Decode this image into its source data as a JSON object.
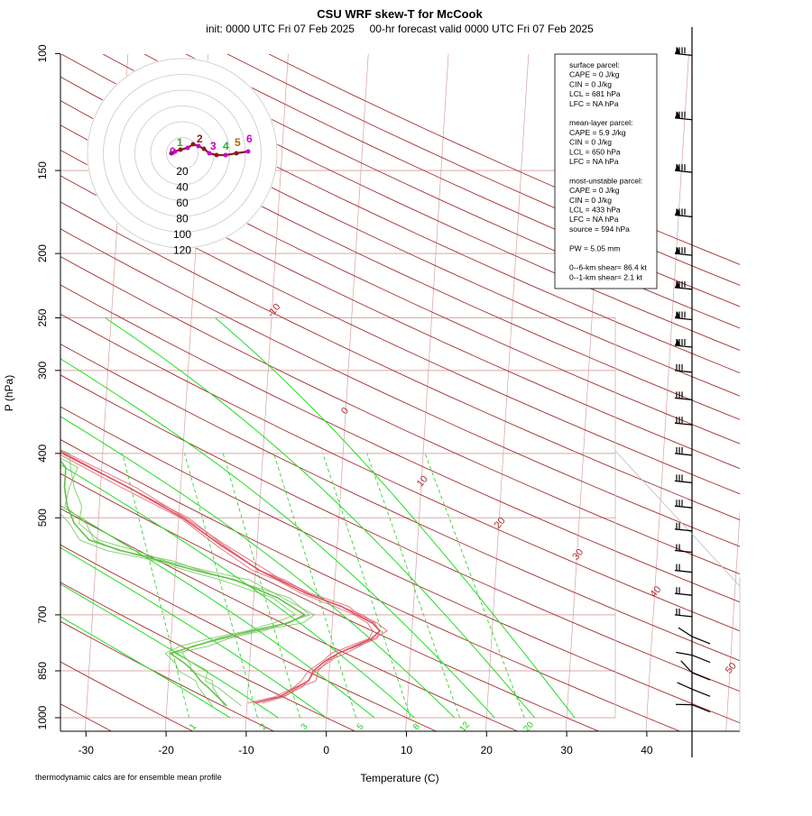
{
  "header": {
    "title": "CSU WRF skew-T for McCook",
    "subtitle": "init: 0000 UTC Fri 07 Feb 2025     00-hr forecast valid 0000 UTC Fri 07 Feb 2025"
  },
  "footer": {
    "note": "thermodynamic calcs are for ensemble mean profile"
  },
  "colors": {
    "temperature": "#dd4f5f",
    "dewpoint": "#66c14b",
    "isotherm": "#d9a0a0",
    "dry_adiabat": "#a42d2d",
    "moist_adiabat": "#22dd22",
    "mixing_ratio": "#22cc22",
    "isobar": "#d8a8a8"
  },
  "stats_box": {
    "lines": [
      "surface parcel:",
      "CAPE = 0 J/kg",
      "CIN = 0 J/kg",
      "LCL = 681 hPa",
      "LFC = NA hPa",
      "",
      "mean-layer parcel:",
      "CAPE = 5.9 J/kg",
      "CIN = 0 J/kg",
      "LCL = 650 hPa",
      "LFC = NA hPa",
      "",
      "most-unstable parcel:",
      "CAPE = 0 J/kg",
      "CIN = 0 J/kg",
      "LCL = 433 hPa",
      "LFC = NA hPa",
      "source = 594 hPa",
      "",
      "PW =  5.05 mm",
      "",
      "0--6-km shear= 86.4 kt",
      "0--1-km shear= 2.1 kt"
    ]
  },
  "hodograph": {
    "ring_labels": [
      "20",
      "40",
      "60",
      "80",
      "100",
      "120"
    ],
    "height_labels": [
      "0",
      "1",
      "2",
      "3",
      "4",
      "5",
      "6"
    ]
  },
  "chart_data": {
    "type": "line",
    "title": "CSU WRF skew-T for McCook",
    "xlabel": "Temperature (C)",
    "ylabel": "P (hPa)",
    "x_ticks": [
      "-30",
      "-20",
      "-10",
      "0",
      "10",
      "20",
      "30",
      "40"
    ],
    "x_tick_values": [
      -30,
      -20,
      -10,
      0,
      10,
      20,
      30,
      40
    ],
    "y_ticks": [
      "100",
      "150",
      "200",
      "250",
      "300",
      "400",
      "500",
      "700",
      "850",
      "1000"
    ],
    "y_tick_values": [
      100,
      150,
      200,
      250,
      300,
      400,
      500,
      700,
      850,
      1000
    ],
    "xlim": [
      -33,
      45
    ],
    "ylim": [
      1050,
      100
    ],
    "skew_per_decade": 46.6,
    "isotherm_labels": [
      "-10",
      "0",
      "10",
      "20",
      "30",
      "40",
      "50"
    ],
    "isotherm_label_values": [
      -10,
      0,
      10,
      20,
      30,
      40,
      50
    ],
    "isotherm_label_pressures": [
      250,
      350,
      450,
      520,
      580,
      660,
      860
    ],
    "mixing_ratio_labels": [
      "1",
      "2",
      "3",
      "5",
      "8",
      "12",
      "20"
    ],
    "mixing_ratio_label_temps": [
      -16.4,
      -7.6,
      -2.5,
      4.5,
      11.5,
      17.5,
      25.5
    ],
    "series": [
      {
        "name": "Temperature",
        "pressure": [
          950,
          930,
          900,
          880,
          850,
          820,
          800,
          780,
          760,
          740,
          720,
          700,
          680,
          650,
          620,
          600,
          550,
          500,
          450,
          400,
          350,
          300,
          270,
          250,
          230,
          200,
          180,
          160,
          145,
          130,
          120,
          110
        ],
        "values": [
          -9,
          -6,
          -4,
          -2.5,
          -2,
          -0.5,
          1,
          3,
          5,
          6,
          5,
          3,
          1,
          -3.5,
          -7,
          -9.5,
          -14.5,
          -19.5,
          -26.5,
          -35,
          -45,
          -57.5,
          -65,
          -65,
          -63.5,
          -59,
          -56.5,
          -55,
          -53.5,
          -49.5,
          -47,
          -44.5
        ]
      },
      {
        "name": "Dewpoint",
        "pressure": [
          960,
          900,
          880,
          850,
          830,
          800,
          780,
          760,
          740,
          720,
          700,
          660,
          620,
          600,
          580,
          560,
          540,
          510,
          480,
          450,
          420,
          400,
          370,
          340,
          310,
          280,
          260,
          230,
          200
        ],
        "values": [
          -12.5,
          -15,
          -16,
          -17,
          -18,
          -20,
          -17,
          -14,
          -10,
          -5.5,
          -3.5,
          -7,
          -12.5,
          -17.5,
          -22,
          -27,
          -31,
          -33,
          -34,
          -34.5,
          -34.5,
          -36,
          -42,
          -45,
          -47.5,
          -52,
          -55,
          -58,
          -62
        ]
      }
    ],
    "moist_adiabat_theta_w": [
      -12,
      -6,
      0,
      6,
      11,
      16,
      21,
      26,
      31
    ]
  }
}
